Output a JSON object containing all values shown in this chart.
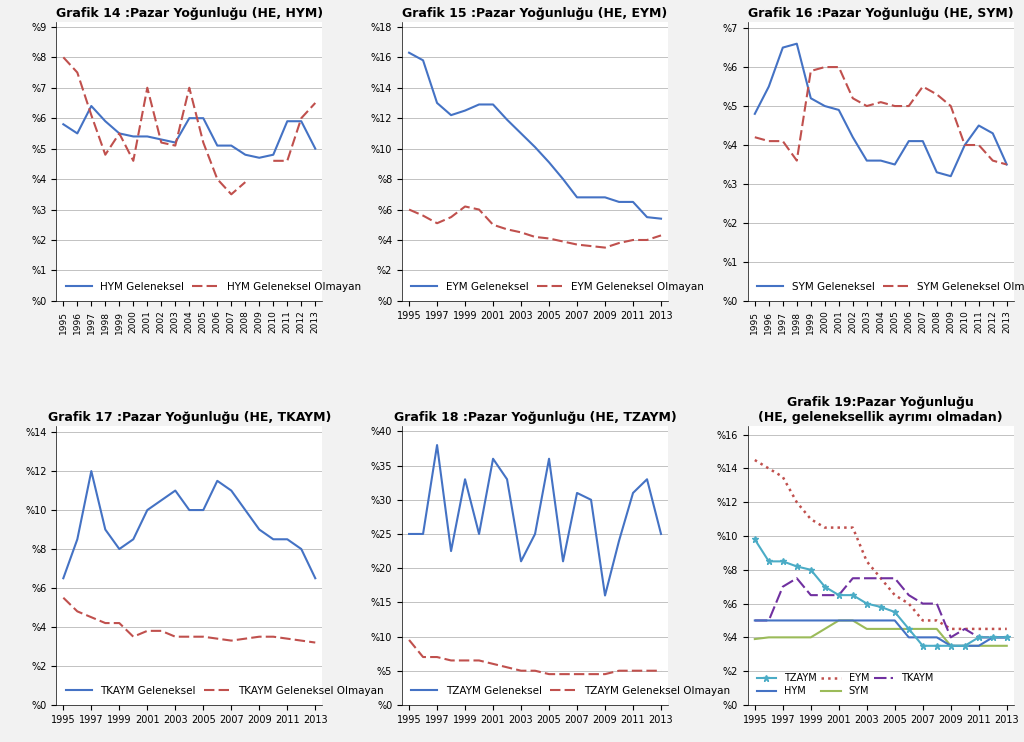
{
  "years": [
    1995,
    1996,
    1997,
    1998,
    1999,
    2000,
    2001,
    2002,
    2003,
    2004,
    2005,
    2006,
    2007,
    2008,
    2009,
    2010,
    2011,
    2012,
    2013
  ],
  "years_odd": [
    1995,
    1997,
    1999,
    2001,
    2003,
    2005,
    2007,
    2009,
    2011,
    2013
  ],
  "g14_geleneksel": [
    5.8,
    5.5,
    6.4,
    5.9,
    5.5,
    5.4,
    5.4,
    5.3,
    5.2,
    6.0,
    6.0,
    5.1,
    5.1,
    4.8,
    4.7,
    4.8,
    5.9,
    5.9,
    5.0
  ],
  "g14_olmayan": [
    8.0,
    7.5,
    6.1,
    4.8,
    5.5,
    4.6,
    7.0,
    5.2,
    5.1,
    7.0,
    5.2,
    4.0,
    3.5,
    3.9,
    null,
    4.6,
    4.6,
    6.0,
    6.5
  ],
  "g15_geleneksel": [
    16.3,
    15.8,
    13.0,
    12.2,
    12.5,
    12.9,
    12.9,
    11.9,
    11.0,
    10.1,
    9.1,
    8.0,
    6.8,
    6.8,
    6.8,
    6.5,
    6.5,
    5.5,
    5.4
  ],
  "g15_olmayan": [
    6.0,
    5.6,
    5.1,
    5.5,
    6.2,
    6.0,
    5.0,
    4.7,
    4.5,
    4.2,
    4.1,
    3.9,
    3.7,
    3.6,
    3.5,
    3.8,
    4.0,
    4.0,
    4.3
  ],
  "g16_geleneksel": [
    4.8,
    5.5,
    6.5,
    6.6,
    5.2,
    5.0,
    4.9,
    4.2,
    3.6,
    3.6,
    3.5,
    4.1,
    4.1,
    3.3,
    3.2,
    4.0,
    4.5,
    4.3,
    3.5
  ],
  "g16_olmayan": [
    4.2,
    4.1,
    4.1,
    3.6,
    5.9,
    6.0,
    6.0,
    5.2,
    5.0,
    5.1,
    5.0,
    5.0,
    5.5,
    5.3,
    5.0,
    4.0,
    4.0,
    3.6,
    3.5
  ],
  "g17_geleneksel": [
    6.5,
    8.5,
    12.0,
    9.0,
    8.0,
    8.5,
    10.0,
    10.5,
    11.0,
    10.0,
    10.0,
    11.5,
    11.0,
    10.0,
    9.0,
    8.5,
    8.5,
    8.0,
    6.5
  ],
  "g17_olmayan": [
    5.5,
    4.8,
    4.5,
    4.2,
    4.2,
    3.5,
    3.8,
    3.8,
    3.5,
    3.5,
    3.5,
    3.4,
    3.3,
    3.4,
    3.5,
    3.5,
    3.4,
    3.3,
    3.2
  ],
  "g18_geleneksel": [
    25.0,
    25.0,
    38.0,
    22.5,
    33.0,
    25.0,
    36.0,
    33.0,
    21.0,
    25.0,
    36.0,
    21.0,
    31.0,
    30.0,
    16.0,
    24.0,
    31.0,
    33.0,
    25.0
  ],
  "g18_olmayan": [
    9.5,
    7.0,
    7.0,
    6.5,
    6.5,
    6.5,
    6.0,
    5.5,
    5.0,
    5.0,
    4.5,
    4.5,
    4.5,
    4.5,
    4.5,
    5.0,
    5.0,
    5.0,
    5.0
  ],
  "g19_hym": [
    5.0,
    5.0,
    5.0,
    5.0,
    5.0,
    5.0,
    5.0,
    5.0,
    5.0,
    5.0,
    5.0,
    4.0,
    4.0,
    4.0,
    3.5,
    3.5,
    3.5,
    4.0,
    4.0
  ],
  "g19_eym": [
    14.5,
    14.0,
    13.5,
    12.0,
    11.0,
    10.5,
    10.5,
    10.5,
    8.5,
    7.5,
    6.5,
    6.0,
    5.0,
    5.0,
    4.5,
    4.5,
    4.5,
    4.5,
    4.5
  ],
  "g19_sym": [
    3.9,
    4.0,
    4.0,
    4.0,
    4.0,
    4.5,
    5.0,
    5.0,
    4.5,
    4.5,
    4.5,
    4.5,
    4.5,
    4.5,
    3.5,
    3.5,
    3.5,
    3.5,
    3.5
  ],
  "g19_tkaym": [
    5.0,
    5.0,
    7.0,
    7.5,
    6.5,
    6.5,
    6.5,
    7.5,
    7.5,
    7.5,
    7.5,
    6.5,
    6.0,
    6.0,
    4.0,
    4.5,
    4.0,
    4.0,
    4.0
  ],
  "g19_tzaym": [
    9.8,
    8.5,
    8.5,
    8.2,
    8.0,
    7.0,
    6.5,
    6.5,
    6.0,
    5.8,
    5.5,
    4.5,
    3.5,
    3.5,
    3.5,
    3.5,
    4.0,
    4.0,
    4.0
  ],
  "blue_color": "#4472C4",
  "red_color": "#C0504D",
  "green_color": "#9BBB59",
  "purple_color": "#7030A0",
  "cyan_color": "#4BACC6",
  "title_fontsize": 9,
  "tick_fontsize": 7,
  "legend_fontsize": 7.5,
  "line_width": 1.5,
  "grid_color": "#AAAAAA"
}
